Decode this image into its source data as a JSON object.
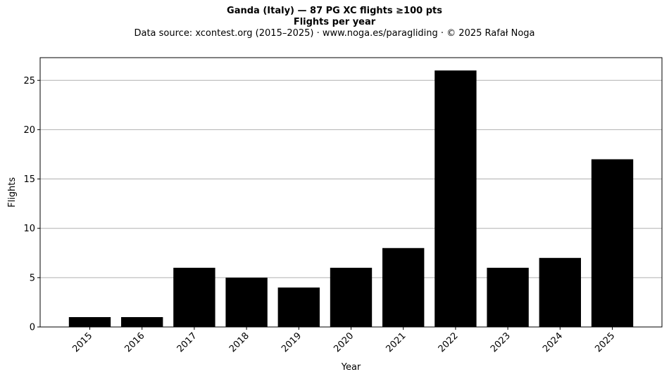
{
  "chart_data": {
    "type": "bar",
    "title": "Ganda (Italy)  —  87 PG XC flights ≥100 pts",
    "subtitle": "Flights per year",
    "source_note": "Data source: xcontest.org (2015–2025)  ·  www.noga.es/paragliding  ·  © 2025 Rafał Noga",
    "xlabel": "Year",
    "ylabel": "Flights",
    "categories": [
      "2015",
      "2016",
      "2017",
      "2018",
      "2019",
      "2020",
      "2021",
      "2022",
      "2023",
      "2024",
      "2025"
    ],
    "values": [
      1,
      1,
      6,
      5,
      4,
      6,
      8,
      26,
      6,
      7,
      17
    ],
    "ylim": [
      0,
      27.3
    ],
    "yticks": [
      "0",
      "5",
      "10",
      "15",
      "20",
      "25"
    ],
    "grid": "horizontal",
    "bar_color": "#000000",
    "grid_color": "#b0b0b0"
  }
}
